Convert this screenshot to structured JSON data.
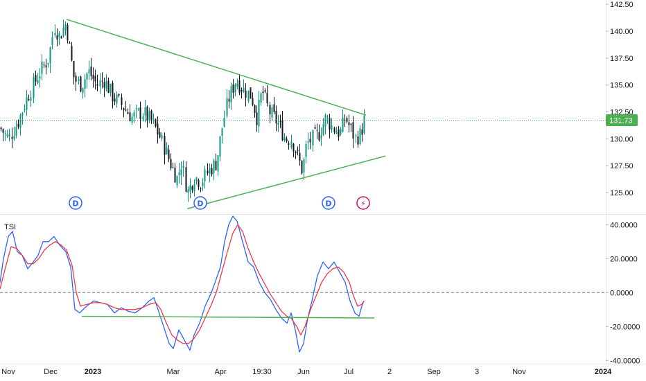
{
  "chart_data": [
    {
      "type": "candlestick",
      "title": "",
      "ylim": [
        123.2,
        142.9
      ],
      "y_ticks": [
        "125.00",
        "127.50",
        "130.00",
        "132.50",
        "135.00",
        "137.50",
        "140.00",
        "142.50"
      ],
      "last_price": 131.73,
      "last_price_label": "131.73",
      "grid": false,
      "colors": {
        "up": "#089981",
        "down": "#131722",
        "trendline": "#4caf50",
        "price_line": "#4caf50"
      },
      "close_path": [
        [
          0,
          131.0
        ],
        [
          12,
          130.0
        ],
        [
          25,
          131.5
        ],
        [
          40,
          134.0
        ],
        [
          55,
          136.0
        ],
        [
          70,
          137.5
        ],
        [
          78,
          140.5
        ],
        [
          85,
          139.5
        ],
        [
          95,
          140.8
        ],
        [
          100,
          138.5
        ],
        [
          107,
          135.5
        ],
        [
          117,
          135.0
        ],
        [
          127,
          136.3
        ],
        [
          140,
          135.0
        ],
        [
          150,
          135.5
        ],
        [
          162,
          134.0
        ],
        [
          177,
          133.0
        ],
        [
          190,
          132.0
        ],
        [
          205,
          132.5
        ],
        [
          220,
          131.5
        ],
        [
          232,
          130.0
        ],
        [
          245,
          127.8
        ],
        [
          255,
          126.3
        ],
        [
          262,
          127.8
        ],
        [
          270,
          125.0
        ],
        [
          280,
          126.5
        ],
        [
          290,
          126.0
        ],
        [
          300,
          127.0
        ],
        [
          312,
          127.8
        ],
        [
          320,
          131.0
        ],
        [
          328,
          133.5
        ],
        [
          340,
          135.5
        ],
        [
          352,
          134.5
        ],
        [
          362,
          134.0
        ],
        [
          370,
          132.0
        ],
        [
          378,
          134.5
        ],
        [
          388,
          132.5
        ],
        [
          400,
          131.5
        ],
        [
          412,
          130.0
        ],
        [
          420,
          130.0
        ],
        [
          428,
          128.5
        ],
        [
          436,
          127.0
        ],
        [
          442,
          129.5
        ],
        [
          450,
          130.0
        ],
        [
          460,
          130.5
        ],
        [
          470,
          132.0
        ],
        [
          480,
          131.0
        ],
        [
          490,
          130.5
        ],
        [
          498,
          132.0
        ],
        [
          505,
          131.0
        ],
        [
          512,
          130.0
        ],
        [
          520,
          130.5
        ],
        [
          525,
          131.73
        ]
      ],
      "trendlines": [
        {
          "x1": 96,
          "y1": 141.1,
          "x2": 528,
          "y2": 132.2
        },
        {
          "x1": 270,
          "y1": 123.5,
          "x2": 556,
          "y2": 128.4
        }
      ],
      "markers": [
        {
          "x": 109,
          "symbol": "D",
          "kind": "dividend"
        },
        {
          "x": 289,
          "symbol": "D",
          "kind": "dividend"
        },
        {
          "x": 474,
          "symbol": "D",
          "kind": "dividend"
        },
        {
          "x": 524,
          "symbol": "⚡",
          "kind": "event"
        }
      ]
    },
    {
      "type": "line",
      "title": "TSI",
      "ylim": [
        -41.5,
        45
      ],
      "y_ticks": [
        "-40.0000",
        "-20.0000",
        "0.0000",
        "20.0000",
        "40.0000"
      ],
      "zero_line": true,
      "series": [
        {
          "color": "#2962ff",
          "points": [
            [
              0,
              6
            ],
            [
              5,
              20
            ],
            [
              12,
              33
            ],
            [
              18,
              36
            ],
            [
              25,
              24
            ],
            [
              32,
              22
            ],
            [
              40,
              14
            ],
            [
              48,
              18
            ],
            [
              55,
              22
            ],
            [
              62,
              30
            ],
            [
              70,
              30
            ],
            [
              78,
              33
            ],
            [
              86,
              28
            ],
            [
              95,
              24
            ],
            [
              102,
              15
            ],
            [
              108,
              -10
            ],
            [
              115,
              -12
            ],
            [
              125,
              -8
            ],
            [
              135,
              -5
            ],
            [
              145,
              -6
            ],
            [
              155,
              -7
            ],
            [
              165,
              -12
            ],
            [
              175,
              -9
            ],
            [
              185,
              -11
            ],
            [
              195,
              -12
            ],
            [
              205,
              -9
            ],
            [
              215,
              -5
            ],
            [
              222,
              -3
            ],
            [
              228,
              -10
            ],
            [
              236,
              -20
            ],
            [
              244,
              -30
            ],
            [
              250,
              -33
            ],
            [
              258,
              -22
            ],
            [
              266,
              -28
            ],
            [
              274,
              -34
            ],
            [
              280,
              -25
            ],
            [
              288,
              -18
            ],
            [
              296,
              -8
            ],
            [
              305,
              0
            ],
            [
              312,
              8
            ],
            [
              318,
              15
            ],
            [
              324,
              30
            ],
            [
              330,
              40
            ],
            [
              336,
              45
            ],
            [
              342,
              42
            ],
            [
              350,
              30
            ],
            [
              358,
              18
            ],
            [
              366,
              15
            ],
            [
              374,
              6
            ],
            [
              382,
              0
            ],
            [
              390,
              -4
            ],
            [
              398,
              -10
            ],
            [
              406,
              -15
            ],
            [
              414,
              -18
            ],
            [
              420,
              -12
            ],
            [
              426,
              -22
            ],
            [
              432,
              -35
            ],
            [
              438,
              -30
            ],
            [
              444,
              -15
            ],
            [
              450,
              -5
            ],
            [
              458,
              10
            ],
            [
              466,
              18
            ],
            [
              474,
              14
            ],
            [
              482,
              18
            ],
            [
              490,
              12
            ],
            [
              498,
              6
            ],
            [
              505,
              -5
            ],
            [
              512,
              -12
            ],
            [
              518,
              -14
            ],
            [
              522,
              -8
            ],
            [
              525,
              -5
            ]
          ]
        },
        {
          "color": "#f23645",
          "points": [
            [
              0,
              2
            ],
            [
              8,
              15
            ],
            [
              16,
              27
            ],
            [
              24,
              26
            ],
            [
              32,
              22
            ],
            [
              40,
              17
            ],
            [
              48,
              17
            ],
            [
              56,
              20
            ],
            [
              64,
              25
            ],
            [
              72,
              28
            ],
            [
              80,
              30
            ],
            [
              88,
              28
            ],
            [
              96,
              25
            ],
            [
              104,
              16
            ],
            [
              110,
              0
            ],
            [
              116,
              -8
            ],
            [
              125,
              -7
            ],
            [
              135,
              -6
            ],
            [
              145,
              -6
            ],
            [
              155,
              -7
            ],
            [
              165,
              -9
            ],
            [
              175,
              -10
            ],
            [
              185,
              -10
            ],
            [
              195,
              -10
            ],
            [
              205,
              -9
            ],
            [
              215,
              -7
            ],
            [
              225,
              -6
            ],
            [
              232,
              -10
            ],
            [
              240,
              -18
            ],
            [
              248,
              -25
            ],
            [
              256,
              -28
            ],
            [
              264,
              -30
            ],
            [
              272,
              -30
            ],
            [
              280,
              -27
            ],
            [
              288,
              -22
            ],
            [
              296,
              -15
            ],
            [
              304,
              -8
            ],
            [
              312,
              0
            ],
            [
              320,
              12
            ],
            [
              328,
              24
            ],
            [
              336,
              35
            ],
            [
              343,
              40
            ],
            [
              350,
              36
            ],
            [
              358,
              26
            ],
            [
              366,
              18
            ],
            [
              374,
              11
            ],
            [
              382,
              5
            ],
            [
              390,
              -1
            ],
            [
              398,
              -6
            ],
            [
              406,
              -11
            ],
            [
              414,
              -14
            ],
            [
              420,
              -15
            ],
            [
              428,
              -20
            ],
            [
              434,
              -25
            ],
            [
              440,
              -20
            ],
            [
              448,
              -10
            ],
            [
              456,
              -2
            ],
            [
              464,
              6
            ],
            [
              472,
              11
            ],
            [
              480,
              14
            ],
            [
              488,
              15
            ],
            [
              496,
              12
            ],
            [
              504,
              6
            ],
            [
              510,
              -2
            ],
            [
              516,
              -8
            ],
            [
              522,
              -7
            ],
            [
              525,
              -5
            ]
          ]
        }
      ],
      "trendline": {
        "x1": 118,
        "y1": -14,
        "x2": 540,
        "y2": -15
      }
    }
  ],
  "x_axis": {
    "ticks": [
      {
        "label": "Nov",
        "x": 12,
        "bold": false
      },
      {
        "label": "Dec",
        "x": 73,
        "bold": false
      },
      {
        "label": "2023",
        "x": 134,
        "bold": true
      },
      {
        "label": "Mar",
        "x": 250,
        "bold": false
      },
      {
        "label": "Apr",
        "x": 318,
        "bold": false
      },
      {
        "label": "19:30",
        "x": 378,
        "bold": false
      },
      {
        "label": "Jun",
        "x": 438,
        "bold": false
      },
      {
        "label": "Jul",
        "x": 503,
        "bold": false
      },
      {
        "label": "2",
        "x": 562,
        "bold": false
      },
      {
        "label": "Sep",
        "x": 626,
        "bold": false
      },
      {
        "label": "3",
        "x": 688,
        "bold": false
      },
      {
        "label": "Nov",
        "x": 749,
        "bold": false
      },
      {
        "label": "2024",
        "x": 870,
        "bold": true
      }
    ]
  }
}
